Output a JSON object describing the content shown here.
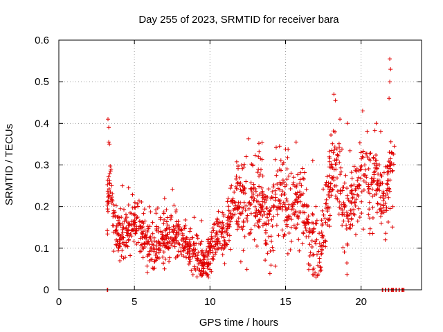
{
  "chart_data": {
    "type": "scatter",
    "title": "Day 255 of 2023, SRMTID for receiver bara",
    "xlabel": "GPS time / hours",
    "ylabel": "SRMTID / TECUs",
    "xlim": [
      0,
      24
    ],
    "ylim": [
      0,
      0.6
    ],
    "xticks": [
      0,
      5,
      10,
      15,
      20
    ],
    "xtick_labels": [
      "0",
      "5",
      "10",
      "15",
      "20"
    ],
    "yticks": [
      0,
      0.1,
      0.2,
      0.3,
      0.4,
      0.5,
      0.6
    ],
    "ytick_labels": [
      "0",
      "0.1",
      "0.2",
      "0.3",
      "0.4",
      "0.5",
      "0.6"
    ],
    "grid": true,
    "marker": "+",
    "color": "#e00000",
    "series": [
      {
        "name": "SRMTID",
        "trend": [
          [
            3.2,
            0.19
          ],
          [
            3.4,
            0.26
          ],
          [
            3.6,
            0.19
          ],
          [
            3.8,
            0.15
          ],
          [
            4.0,
            0.13
          ],
          [
            4.5,
            0.14
          ],
          [
            5.0,
            0.16
          ],
          [
            5.5,
            0.14
          ],
          [
            6.0,
            0.12
          ],
          [
            6.5,
            0.11
          ],
          [
            7.0,
            0.12
          ],
          [
            7.5,
            0.13
          ],
          [
            8.0,
            0.12
          ],
          [
            8.5,
            0.11
          ],
          [
            9.0,
            0.08
          ],
          [
            9.5,
            0.06
          ],
          [
            9.8,
            0.07
          ],
          [
            10.0,
            0.11
          ],
          [
            10.5,
            0.13
          ],
          [
            11.0,
            0.14
          ],
          [
            11.5,
            0.2
          ],
          [
            12.0,
            0.22
          ],
          [
            12.5,
            0.2
          ],
          [
            13.0,
            0.21
          ],
          [
            13.5,
            0.2
          ],
          [
            14.0,
            0.16
          ],
          [
            14.5,
            0.22
          ],
          [
            15.0,
            0.21
          ],
          [
            15.5,
            0.19
          ],
          [
            16.0,
            0.24
          ],
          [
            16.5,
            0.14
          ],
          [
            17.0,
            0.12
          ],
          [
            17.2,
            0.08
          ],
          [
            17.5,
            0.16
          ],
          [
            18.0,
            0.27
          ],
          [
            18.5,
            0.26
          ],
          [
            19.0,
            0.18
          ],
          [
            19.5,
            0.22
          ],
          [
            20.0,
            0.28
          ],
          [
            20.5,
            0.25
          ],
          [
            21.0,
            0.28
          ],
          [
            21.5,
            0.2
          ],
          [
            22.0,
            0.3
          ],
          [
            22.2,
            0.3
          ]
        ],
        "spikes": [
          [
            3.25,
            0.41
          ],
          [
            3.3,
            0.39
          ],
          [
            3.3,
            0.355
          ],
          [
            3.35,
            0.35
          ],
          [
            3.45,
            0.29
          ],
          [
            4.2,
            0.25
          ],
          [
            7.0,
            0.22
          ],
          [
            12.4,
            0.32
          ],
          [
            14.6,
            0.345
          ],
          [
            15.7,
            0.355
          ],
          [
            16.8,
            0.31
          ],
          [
            18.2,
            0.47
          ],
          [
            18.3,
            0.455
          ],
          [
            18.6,
            0.41
          ],
          [
            19.1,
            0.4
          ],
          [
            20.1,
            0.43
          ],
          [
            20.4,
            0.38
          ],
          [
            21.0,
            0.4
          ],
          [
            21.3,
            0.38
          ],
          [
            21.9,
            0.555
          ],
          [
            21.95,
            0.53
          ],
          [
            21.9,
            0.5
          ],
          [
            21.85,
            0.46
          ],
          [
            22.2,
            0.345
          ],
          [
            21.6,
            0.12
          ],
          [
            17.3,
            0.055
          ],
          [
            9.5,
            0.035
          ]
        ],
        "zeros_x": [
          3.2,
          21.4,
          21.6,
          21.8,
          22.0,
          22.1,
          22.3,
          22.5,
          22.7,
          22.8
        ]
      }
    ]
  }
}
